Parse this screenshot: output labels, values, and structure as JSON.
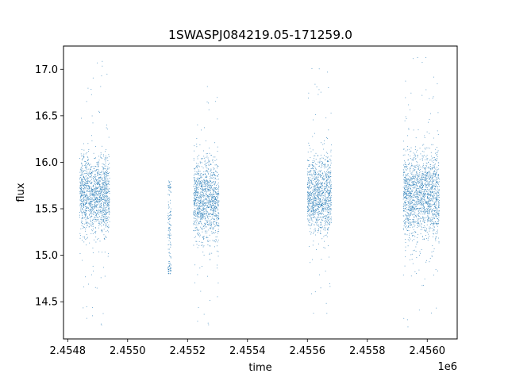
{
  "chart_data": {
    "type": "scatter",
    "title": "1SWASPJ084219.05-171259.0",
    "xlabel": "time",
    "ylabel": "flux",
    "x_offset_label": "1e6",
    "xlim": [
      2454786,
      2456100
    ],
    "ylim": [
      14.1,
      17.25
    ],
    "x_ticks": [
      2454800,
      2455000,
      2455200,
      2455400,
      2455600,
      2455800,
      2456000
    ],
    "x_tick_labels": [
      "2.4548",
      "2.4550",
      "2.4552",
      "2.4554",
      "2.4556",
      "2.4558",
      "2.4560"
    ],
    "y_ticks": [
      14.5,
      15.0,
      15.5,
      16.0,
      16.5,
      17.0
    ],
    "y_tick_labels": [
      "14.5",
      "15.0",
      "15.5",
      "16.0",
      "16.5",
      "17.0"
    ],
    "grid": false,
    "legend": "none",
    "marker_color": "#1f77b4",
    "series": [
      {
        "clusters": [
          {
            "x_start": 2454840,
            "x_end": 2454940,
            "y_center": 15.65,
            "y_spread": 0.2,
            "y_min": 14.2,
            "y_max": 17.1
          },
          {
            "x_start": 2455135,
            "x_end": 2455145,
            "y_center": 15.3,
            "y_spread": 0.4,
            "y_min": 14.8,
            "y_max": 15.8
          },
          {
            "x_start": 2455220,
            "x_end": 2455305,
            "y_center": 15.6,
            "y_spread": 0.21,
            "y_min": 14.25,
            "y_max": 16.95
          },
          {
            "x_start": 2455600,
            "x_end": 2455680,
            "y_center": 15.65,
            "y_spread": 0.2,
            "y_min": 14.3,
            "y_max": 17.05
          },
          {
            "x_start": 2455920,
            "x_end": 2456040,
            "y_center": 15.65,
            "y_spread": 0.22,
            "y_min": 14.2,
            "y_max": 17.15
          }
        ]
      }
    ]
  }
}
